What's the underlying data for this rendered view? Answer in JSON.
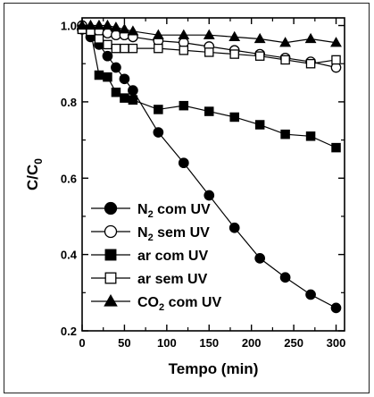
{
  "chart_data": {
    "type": "line",
    "title": "",
    "xlabel": "Tempo (min)",
    "ylabel_main": "C/C",
    "ylabel_sub": "0",
    "xlim": [
      0,
      310
    ],
    "ylim": [
      0.2,
      1.02
    ],
    "xticks": [
      0,
      50,
      100,
      150,
      200,
      250,
      300
    ],
    "yticks": [
      0.2,
      0.4,
      0.6,
      0.8,
      1.0
    ],
    "xtick_labels": [
      "0",
      "50",
      "100",
      "150",
      "200",
      "250",
      "300"
    ],
    "ytick_labels": [
      "0.2",
      "0.4",
      "0.6",
      "0.8",
      "1.0"
    ],
    "grid": false,
    "legend_position": "bottom-left",
    "series": [
      {
        "label_pre": "N",
        "label_sub": "2",
        "label_post": " com UV",
        "marker": "circle",
        "filled": true,
        "x": [
          0,
          10,
          20,
          30,
          40,
          50,
          60,
          90,
          120,
          150,
          180,
          210,
          240,
          270,
          300
        ],
        "y": [
          0.99,
          0.97,
          0.95,
          0.92,
          0.89,
          0.86,
          0.83,
          0.72,
          0.64,
          0.555,
          0.47,
          0.39,
          0.34,
          0.295,
          0.26
        ]
      },
      {
        "label_pre": "N",
        "label_sub": "2",
        "label_post": " sem UV",
        "marker": "circle",
        "filled": false,
        "x": [
          0,
          10,
          20,
          30,
          40,
          50,
          60,
          90,
          120,
          150,
          180,
          210,
          240,
          270,
          300
        ],
        "y": [
          1.0,
          0.99,
          0.985,
          0.98,
          0.975,
          0.975,
          0.97,
          0.96,
          0.955,
          0.945,
          0.935,
          0.925,
          0.915,
          0.905,
          0.89
        ]
      },
      {
        "label_pre": "ar com UV",
        "label_sub": "",
        "label_post": "",
        "marker": "square",
        "filled": true,
        "x": [
          0,
          10,
          20,
          30,
          40,
          50,
          60,
          90,
          120,
          150,
          180,
          210,
          240,
          270,
          300
        ],
        "y": [
          0.99,
          0.985,
          0.87,
          0.865,
          0.825,
          0.81,
          0.805,
          0.78,
          0.79,
          0.775,
          0.76,
          0.74,
          0.715,
          0.71,
          0.68
        ]
      },
      {
        "label_pre": "ar sem UV",
        "label_sub": "",
        "label_post": "",
        "marker": "square",
        "filled": false,
        "x": [
          0,
          10,
          20,
          30,
          40,
          50,
          60,
          90,
          120,
          150,
          180,
          210,
          240,
          270,
          300
        ],
        "y": [
          0.99,
          0.985,
          0.965,
          0.95,
          0.94,
          0.94,
          0.94,
          0.94,
          0.935,
          0.93,
          0.925,
          0.92,
          0.91,
          0.9,
          0.91
        ]
      },
      {
        "label_pre": "CO",
        "label_sub": "2",
        "label_post": " com UV",
        "marker": "triangle",
        "filled": true,
        "x": [
          0,
          10,
          20,
          30,
          40,
          50,
          60,
          90,
          120,
          150,
          180,
          210,
          240,
          270,
          300
        ],
        "y": [
          1.0,
          1.0,
          1.0,
          1.0,
          0.995,
          0.99,
          0.985,
          0.975,
          0.975,
          0.975,
          0.97,
          0.965,
          0.955,
          0.965,
          0.955
        ]
      }
    ]
  }
}
